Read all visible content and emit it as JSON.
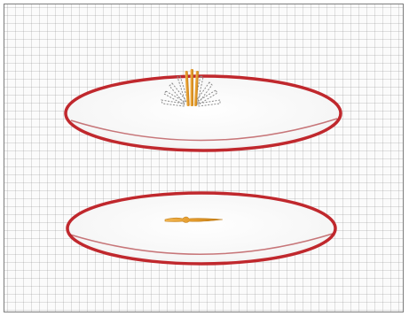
{
  "colors": {
    "page_background": "#ffffff",
    "grid_paper": "#fbfbfb",
    "grid_line": "#b4b4b4",
    "frame_border": "#7d7d7d",
    "dish_fill": "#f8f8f8",
    "dish_rim": "#c0282d",
    "stick": "#e8a132",
    "stick_dark": "#c27d16",
    "ghost_stick": "#8a8a8a"
  },
  "icons": {
    "top_dish": "petri-dish-icon",
    "bottom_dish": "petri-dish-icon",
    "standing_sticks": "upright-stick-icon",
    "ghost_sticks": "falling-stick-trace-icon",
    "fallen_stick": "fallen-stick-icon"
  },
  "scene": {
    "top_dish": {
      "upright_stick_count": 3,
      "ghost_stick_count": 8
    },
    "bottom_dish": {
      "fallen_stick_count": 1
    }
  }
}
